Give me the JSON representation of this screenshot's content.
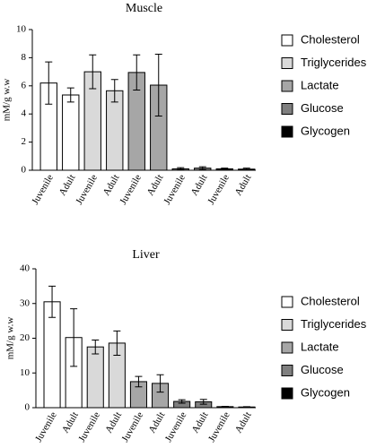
{
  "chart_data": [
    {
      "type": "bar",
      "title": "Muscle",
      "ylabel": "mM/g w.w",
      "categories": [
        "Juvenile",
        "Adult",
        "Juvenile",
        "Adult",
        "Juvenile",
        "Adult",
        "Juvenile",
        "Adult",
        "Juvenile",
        "Adult"
      ],
      "ylim": [
        0,
        10
      ],
      "yticks": [
        0,
        2,
        4,
        6,
        8,
        10
      ],
      "series": [
        {
          "name": "Cholesterol",
          "color": "#ffffff",
          "values": [
            6.2,
            5.35,
            null,
            null,
            null,
            null,
            null,
            null,
            null,
            null
          ],
          "errors": [
            1.5,
            0.5,
            null,
            null,
            null,
            null,
            null,
            null,
            null,
            null
          ]
        },
        {
          "name": "Triglycerides",
          "color": "#d9d9d9",
          "values": [
            null,
            null,
            7.0,
            5.65,
            null,
            null,
            null,
            null,
            null,
            null
          ],
          "errors": [
            null,
            null,
            1.2,
            0.8,
            null,
            null,
            null,
            null,
            null,
            null
          ]
        },
        {
          "name": "Lactate",
          "color": "#a6a6a6",
          "values": [
            null,
            null,
            null,
            null,
            6.95,
            6.05,
            null,
            null,
            null,
            null
          ],
          "errors": [
            null,
            null,
            null,
            null,
            1.25,
            2.2,
            null,
            null,
            null,
            null
          ]
        },
        {
          "name": "Glucose",
          "color": "#7f7f7f",
          "values": [
            null,
            null,
            null,
            null,
            null,
            null,
            0.1,
            0.15,
            null,
            null
          ],
          "errors": [
            null,
            null,
            null,
            null,
            null,
            null,
            0.08,
            0.1,
            null,
            null
          ]
        },
        {
          "name": "Glycogen",
          "color": "#000000",
          "values": [
            null,
            null,
            null,
            null,
            null,
            null,
            null,
            null,
            0.1,
            0.08
          ],
          "errors": [
            null,
            null,
            null,
            null,
            null,
            null,
            null,
            null,
            0.05,
            0.07
          ]
        }
      ]
    },
    {
      "type": "bar",
      "title": "Liver",
      "ylabel": "mM/g w.w",
      "categories": [
        "Juvenile",
        "Adult",
        "Juvenile",
        "Adult",
        "Juvenile",
        "Adult",
        "Juvenile",
        "Adult",
        "Juvenile",
        "Adult"
      ],
      "ylim": [
        0,
        40
      ],
      "yticks": [
        0,
        10,
        20,
        30,
        40
      ],
      "series": [
        {
          "name": "Cholesterol",
          "color": "#ffffff",
          "values": [
            30.5,
            20.2,
            null,
            null,
            null,
            null,
            null,
            null,
            null,
            null
          ],
          "errors": [
            4.5,
            8.3,
            null,
            null,
            null,
            null,
            null,
            null,
            null,
            null
          ]
        },
        {
          "name": "Triglycerides",
          "color": "#d9d9d9",
          "values": [
            null,
            null,
            17.5,
            18.6,
            null,
            null,
            null,
            null,
            null,
            null
          ],
          "errors": [
            null,
            null,
            2.0,
            3.5,
            null,
            null,
            null,
            null,
            null,
            null
          ]
        },
        {
          "name": "Lactate",
          "color": "#a6a6a6",
          "values": [
            null,
            null,
            null,
            null,
            7.5,
            7.0,
            null,
            null,
            null,
            null
          ],
          "errors": [
            null,
            null,
            null,
            null,
            1.5,
            2.5,
            null,
            null,
            null,
            null
          ]
        },
        {
          "name": "Glucose",
          "color": "#7f7f7f",
          "values": [
            null,
            null,
            null,
            null,
            null,
            null,
            1.8,
            1.7,
            null,
            null
          ],
          "errors": [
            null,
            null,
            null,
            null,
            null,
            null,
            0.5,
            0.7,
            null,
            null
          ]
        },
        {
          "name": "Glycogen",
          "color": "#000000",
          "values": [
            null,
            null,
            null,
            null,
            null,
            null,
            null,
            null,
            0.3,
            0.2
          ],
          "errors": [
            null,
            null,
            null,
            null,
            null,
            null,
            null,
            null,
            0.1,
            0.1
          ]
        }
      ]
    }
  ]
}
